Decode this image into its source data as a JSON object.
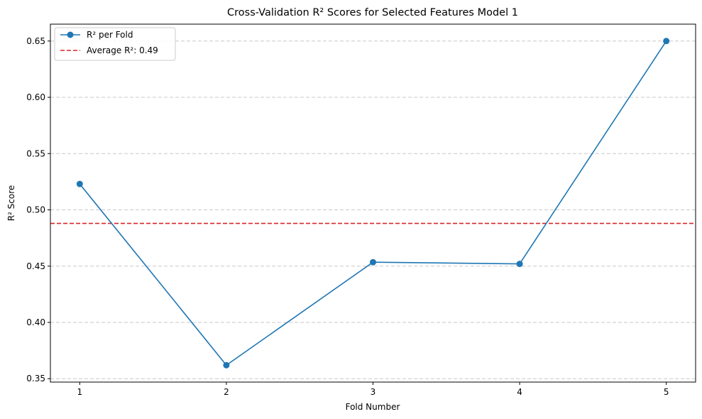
{
  "chart_data": {
    "type": "line",
    "title": "Cross-Validation R² Scores for Selected Features Model 1",
    "xlabel": "Fold Number",
    "ylabel": "R² Score",
    "x": [
      1,
      2,
      3,
      4,
      5
    ],
    "x_tick_labels": [
      "1",
      "2",
      "3",
      "4",
      "5"
    ],
    "y_ticks": [
      0.35,
      0.4,
      0.45,
      0.5,
      0.55,
      0.6,
      0.65
    ],
    "y_tick_labels": [
      "0.35",
      "0.40",
      "0.45",
      "0.50",
      "0.55",
      "0.60",
      "0.65"
    ],
    "ylim": [
      0.347,
      0.665
    ],
    "xlim": [
      0.8,
      5.2
    ],
    "series": [
      {
        "name": "R² per Fold",
        "values": [
          0.523,
          0.362,
          0.4535,
          0.452,
          0.65
        ],
        "color": "#1f77b4",
        "marker": "circle"
      }
    ],
    "reference_lines": [
      {
        "name": "Average R²: 0.49",
        "value": 0.488,
        "color": "#d62728",
        "style": "dashed"
      }
    ],
    "grid": "y-dashed",
    "legend_position": "top-left"
  }
}
